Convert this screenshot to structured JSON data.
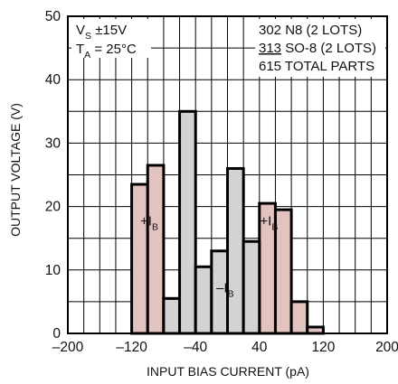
{
  "chart_data": {
    "type": "bar",
    "xlabel": "INPUT BIAS CURRENT (pA)",
    "ylabel": "OUTPUT VOLTAGE (V)",
    "xlim": [
      -200,
      200
    ],
    "ylim": [
      0,
      50
    ],
    "xticks": [
      "–200",
      "–120",
      "–40",
      "40",
      "120",
      "200"
    ],
    "yticks": [
      "0",
      "10",
      "20",
      "30",
      "40",
      "50"
    ],
    "grid": true,
    "bin_width": 20,
    "series": [
      {
        "color": "#e3c3c0",
        "bins": [
          {
            "x0": -120,
            "x1": -100,
            "value": 23.5
          },
          {
            "x0": -100,
            "x1": -80,
            "value": 26.5
          },
          {
            "x0": -80,
            "x1": -60,
            "value": 5.5
          },
          {
            "x0": 20,
            "x1": 40,
            "value": 5
          },
          {
            "x0": 40,
            "x1": 60,
            "value": 20.5
          },
          {
            "x0": 60,
            "x1": 80,
            "value": 19.5
          },
          {
            "x0": 80,
            "x1": 100,
            "value": 5
          },
          {
            "x0": 100,
            "x1": 120,
            "value": 1
          }
        ]
      },
      {
        "color": "#d3d3d3",
        "bins": [
          {
            "x0": -80,
            "x1": -60,
            "value": 5.5
          },
          {
            "x0": -60,
            "x1": -40,
            "value": 35
          },
          {
            "x0": -40,
            "x1": -20,
            "value": 10.5
          },
          {
            "x0": -20,
            "x1": 0,
            "value": 13
          },
          {
            "x0": 0,
            "x1": 20,
            "value": 26
          },
          {
            "x0": 20,
            "x1": 40,
            "value": 14.5
          }
        ]
      }
    ],
    "bar_labels": [
      {
        "main": "+I",
        "sub": "B",
        "x": -98,
        "y": 17
      },
      {
        "main": "–I",
        "sub": "B",
        "x": -3,
        "y": 6.5
      },
      {
        "main": "+I",
        "sub": "B",
        "x": 52,
        "y": 17
      }
    ],
    "annotations_left": [
      {
        "main": "V",
        "sub": "S",
        "rest": " ±15V"
      },
      {
        "main": "T",
        "sub": "A",
        "rest": " = 25°C"
      }
    ],
    "annotations_right": [
      {
        "count": "302",
        "text": " N8 (2 LOTS)",
        "underline": false
      },
      {
        "count": "313",
        "text": " SO-8 (2 LOTS)",
        "underline": true
      },
      {
        "count": "615",
        "text": " TOTAL PARTS",
        "underline": false
      }
    ]
  }
}
